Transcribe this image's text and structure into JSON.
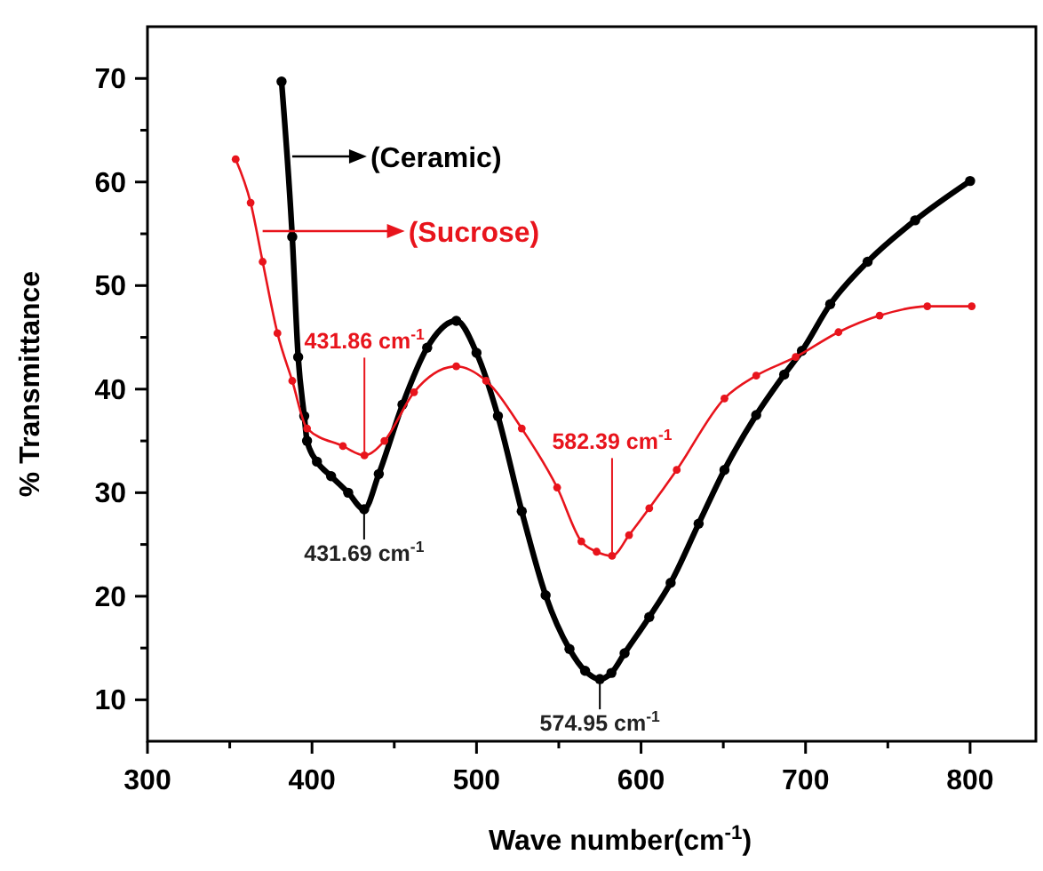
{
  "chart_data": {
    "type": "line",
    "xlabel": "Wave number(cm$^{-1}$)",
    "ylabel": "% Transmittance",
    "xlim": [
      300,
      840
    ],
    "ylim": [
      6,
      75
    ],
    "xticks": [
      300,
      {
        "value": 350,
        "label": null
      },
      400,
      {
        "value": 450,
        "label": null
      },
      500,
      {
        "value": 550,
        "label": null
      },
      600,
      {
        "value": 650,
        "label": null
      },
      700,
      {
        "value": 750,
        "label": null
      },
      800
    ],
    "yticks": [
      10,
      {
        "value": 15,
        "label": null
      },
      20,
      {
        "value": 25,
        "label": null
      },
      30,
      {
        "value": 35,
        "label": null
      },
      40,
      {
        "value": 45,
        "label": null
      },
      50,
      {
        "value": 55,
        "label": null
      },
      60,
      {
        "value": 65,
        "label": null
      },
      70
    ],
    "marker": "circle",
    "grid": false,
    "legend": "top left",
    "series": [
      {
        "name": "(Ceramic)",
        "color": "#000000",
        "x": [
          381.5,
          388,
          391.6,
          395.3,
          397,
          403,
          411.6,
          422,
          431.7,
          440.6,
          455,
          470,
          487.7,
          500,
          513,
          527.5,
          542,
          556.5,
          566,
          574.95,
          582,
          590,
          605,
          618,
          635,
          650.7,
          670,
          687,
          697.8,
          715,
          737.7,
          766.6,
          800
        ],
        "values": [
          69.7,
          54.7,
          43.1,
          37.4,
          35,
          33,
          31.6,
          30,
          28.4,
          31.8,
          38.5,
          44,
          46.6,
          43.5,
          37.4,
          28.2,
          20.1,
          14.9,
          12.8,
          12,
          12.6,
          14.5,
          18,
          21.3,
          27,
          32.2,
          37.5,
          41.4,
          43.7,
          48.2,
          52.3,
          56.3,
          60.1
        ]
      },
      {
        "name": "(Sucrose)",
        "color": "#e8141c",
        "x": [
          353.6,
          362.7,
          370,
          379,
          388,
          397,
          418.8,
          431.86,
          444,
          462,
          487.7,
          505.8,
          527.5,
          549,
          563.7,
          573,
          582.39,
          592.7,
          605,
          621.7,
          650.7,
          670,
          694,
          720,
          745,
          774,
          801
        ],
        "values": [
          62.2,
          58,
          52.3,
          45.4,
          40.8,
          36.2,
          34.5,
          33.6,
          35,
          39.7,
          42.2,
          40.8,
          36.2,
          30.5,
          25.3,
          24.3,
          23.9,
          25.9,
          28.5,
          32.2,
          39.1,
          41.3,
          43.1,
          45.5,
          47.1,
          48,
          48
        ]
      }
    ],
    "annotations": [
      {
        "text": "431.86 cm$^{-1}$",
        "x": 431.86,
        "y": 33.6
      },
      {
        "text": "431.69 cm$^{-1}$",
        "x": 431.69,
        "y": 28.4
      },
      {
        "text": "582.39 cm$^{-1}$",
        "x": 582.39,
        "y": 23.9
      },
      {
        "text": "574.95 cm$^{-1}$",
        "x": 574.95,
        "y": 12
      }
    ]
  }
}
